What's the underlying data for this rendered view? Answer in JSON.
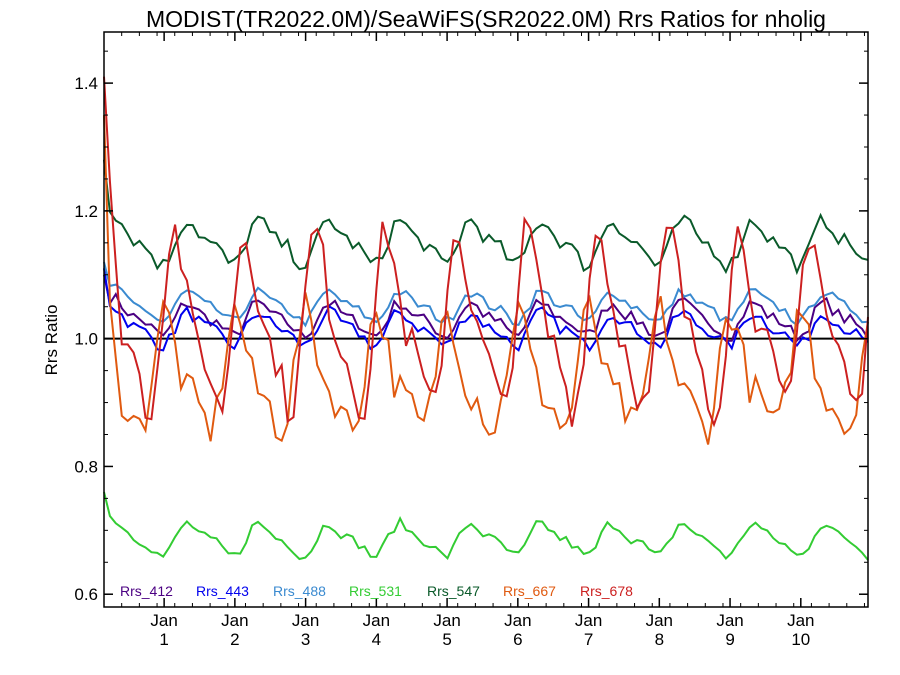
{
  "chart_data": {
    "type": "line",
    "title": "MODIST(TR2022.0M)/SeaWiFS(SR2022.0M)  Rrs Ratios for nholig",
    "ylabel": "Rrs Ratio",
    "xlabel": "",
    "ylim": [
      0.58,
      1.48
    ],
    "xlim": [
      0,
      10.8
    ],
    "y_ticks": [
      0.6,
      0.8,
      1.0,
      1.2,
      1.4
    ],
    "y_tick_labels": [
      "0.6",
      "0.8",
      "1.0",
      "1.2",
      "1.4"
    ],
    "x_ticks": [
      0.85,
      1.85,
      2.85,
      3.85,
      4.85,
      5.85,
      6.85,
      7.85,
      8.85,
      9.85
    ],
    "x_tick_labels": [
      {
        "month": "Jan",
        "year": "1"
      },
      {
        "month": "Jan",
        "year": "2"
      },
      {
        "month": "Jan",
        "year": "3"
      },
      {
        "month": "Jan",
        "year": "4"
      },
      {
        "month": "Jan",
        "year": "5"
      },
      {
        "month": "Jan",
        "year": "6"
      },
      {
        "month": "Jan",
        "year": "7"
      },
      {
        "month": "Jan",
        "year": "8"
      },
      {
        "month": "Jan",
        "year": "9"
      },
      {
        "month": "Jan",
        "year": "10"
      }
    ],
    "reference_line": 1.0,
    "legend_position": "bottom-left",
    "series": [
      {
        "name": "Rrs_412",
        "color": "#4b0082",
        "mean": 1.03,
        "amp": 0.022,
        "noise": 0.01,
        "start": 1.1,
        "phase": 0.0
      },
      {
        "name": "Rrs_443",
        "color": "#0000ee",
        "mean": 1.015,
        "amp": 0.022,
        "noise": 0.01,
        "start": 1.11,
        "phase": 0.0
      },
      {
        "name": "Rrs_488",
        "color": "#3a8ad0",
        "mean": 1.05,
        "amp": 0.02,
        "noise": 0.008,
        "start": 1.12,
        "phase": 0.0
      },
      {
        "name": "Rrs_531",
        "color": "#33cc33",
        "mean": 0.685,
        "amp": 0.022,
        "noise": 0.008,
        "start": 0.76,
        "phase": 0.0
      },
      {
        "name": "Rrs_547",
        "color": "#0a5a2a",
        "mean": 1.15,
        "amp": 0.03,
        "noise": 0.012,
        "start": 1.28,
        "phase": 0.0
      },
      {
        "name": "Rrs_667",
        "color": "#e05a10",
        "mean": 0.94,
        "amp": 0.08,
        "noise": 0.03,
        "start": 1.35,
        "phase": 2.2
      },
      {
        "name": "Rrs_678",
        "color": "#cc2020",
        "mean": 1.02,
        "amp": 0.12,
        "noise": 0.03,
        "start": 1.41,
        "phase": 1.3
      }
    ]
  }
}
